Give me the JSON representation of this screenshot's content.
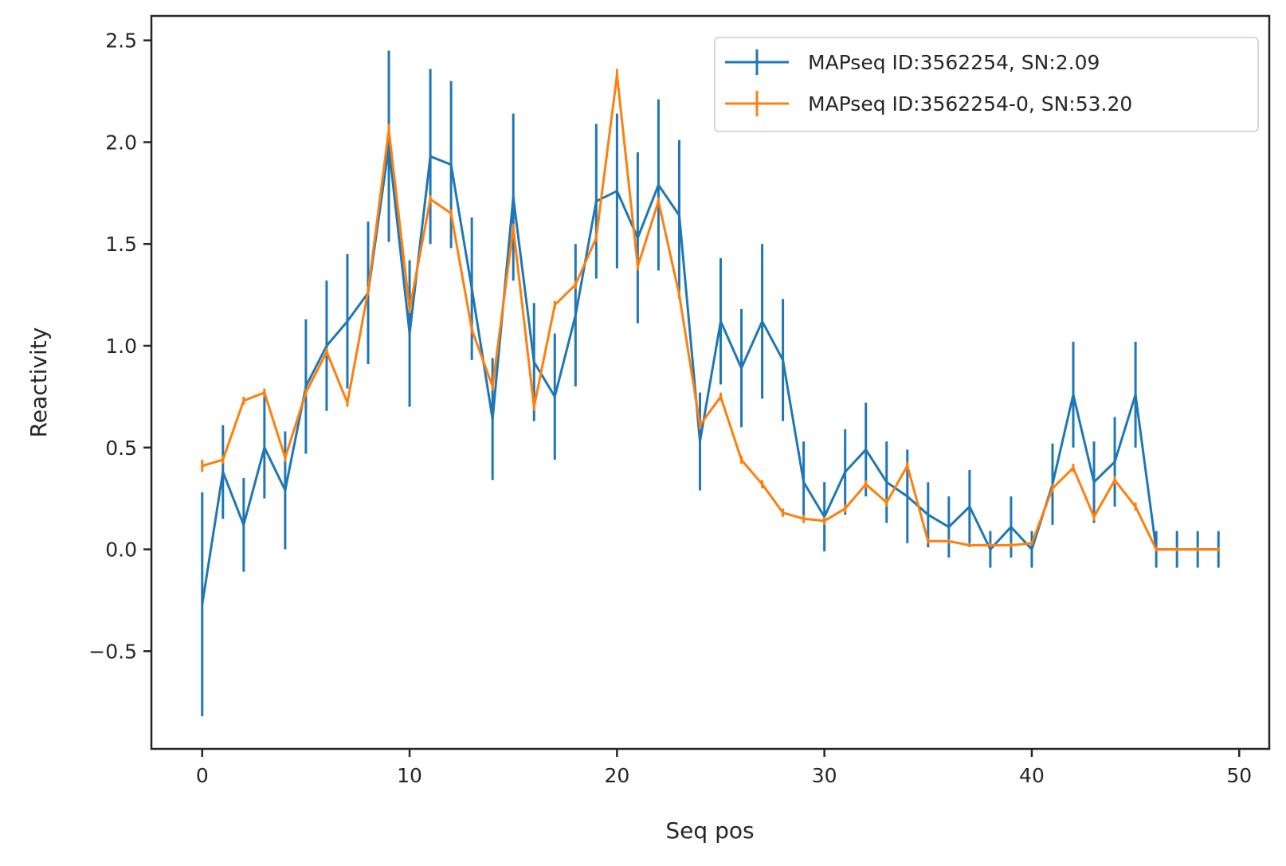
{
  "chart_data": {
    "type": "line",
    "title": "",
    "xlabel": "Seq pos",
    "ylabel": "Reactivity",
    "xlim": [
      -2.45,
      51.45
    ],
    "ylim": [
      -0.98,
      2.62
    ],
    "xticks": [
      0,
      10,
      20,
      30,
      40,
      50
    ],
    "yticks": [
      -0.5,
      0.0,
      0.5,
      1.0,
      1.5,
      2.0,
      2.5
    ],
    "ytick_labels": [
      "−0.5",
      "0.0",
      "0.5",
      "1.0",
      "1.5",
      "2.0",
      "2.5"
    ],
    "grid": false,
    "legend_position": "upper-right",
    "x": [
      0,
      1,
      2,
      3,
      4,
      5,
      6,
      7,
      8,
      9,
      10,
      11,
      12,
      13,
      14,
      15,
      16,
      17,
      18,
      19,
      20,
      21,
      22,
      23,
      24,
      25,
      26,
      27,
      28,
      29,
      30,
      31,
      32,
      33,
      34,
      35,
      36,
      37,
      38,
      39,
      40,
      41,
      42,
      43,
      44,
      45,
      46,
      47,
      48,
      49
    ],
    "series": [
      {
        "name": "MAPseq ID:3562254, SN:2.09",
        "color": "#1f77b4",
        "values": [
          -0.27,
          0.38,
          0.12,
          0.5,
          0.29,
          0.8,
          1.0,
          1.12,
          1.26,
          1.98,
          1.06,
          1.93,
          1.89,
          1.28,
          0.64,
          1.73,
          0.92,
          0.75,
          1.15,
          1.71,
          1.76,
          1.53,
          1.79,
          1.64,
          0.53,
          1.12,
          0.89,
          1.12,
          0.93,
          0.33,
          0.16,
          0.38,
          0.49,
          0.33,
          0.26,
          0.17,
          0.11,
          0.21,
          0.0,
          0.11,
          0.0,
          0.32,
          0.76,
          0.33,
          0.43,
          0.76,
          0.0,
          0.0,
          0.0,
          0.0
        ],
        "errors": [
          0.55,
          0.23,
          0.23,
          0.25,
          0.29,
          0.33,
          0.32,
          0.33,
          0.35,
          0.47,
          0.36,
          0.43,
          0.41,
          0.35,
          0.3,
          0.41,
          0.29,
          0.31,
          0.35,
          0.38,
          0.38,
          0.42,
          0.42,
          0.37,
          0.24,
          0.31,
          0.29,
          0.38,
          0.3,
          0.2,
          0.17,
          0.21,
          0.23,
          0.2,
          0.23,
          0.16,
          0.15,
          0.18,
          0.09,
          0.15,
          0.09,
          0.2,
          0.26,
          0.2,
          0.22,
          0.26,
          0.09,
          0.09,
          0.09,
          0.09
        ]
      },
      {
        "name": "MAPseq ID:3562254-0, SN:53.20",
        "color": "#ff7f0e",
        "values": [
          0.41,
          0.44,
          0.73,
          0.77,
          0.45,
          0.77,
          0.97,
          0.72,
          1.27,
          2.06,
          1.18,
          1.72,
          1.65,
          1.08,
          0.8,
          1.58,
          0.7,
          1.2,
          1.3,
          1.53,
          2.33,
          1.39,
          1.71,
          1.25,
          0.61,
          0.75,
          0.44,
          0.32,
          0.18,
          0.15,
          0.14,
          0.2,
          0.32,
          0.23,
          0.41,
          0.04,
          0.04,
          0.02,
          0.02,
          0.02,
          0.03,
          0.3,
          0.4,
          0.16,
          0.34,
          0.21,
          0.0,
          0.0,
          0.0,
          0.0
        ],
        "errors": [
          0.03,
          0.02,
          0.02,
          0.02,
          0.02,
          0.02,
          0.02,
          0.02,
          0.02,
          0.03,
          0.02,
          0.02,
          0.02,
          0.02,
          0.02,
          0.02,
          0.02,
          0.02,
          0.02,
          0.02,
          0.03,
          0.02,
          0.02,
          0.02,
          0.02,
          0.02,
          0.02,
          0.02,
          0.02,
          0.02,
          0.02,
          0.02,
          0.02,
          0.02,
          0.02,
          0.01,
          0.01,
          0.01,
          0.01,
          0.01,
          0.01,
          0.02,
          0.02,
          0.02,
          0.02,
          0.02,
          0.01,
          0.01,
          0.01,
          0.01
        ]
      }
    ]
  }
}
